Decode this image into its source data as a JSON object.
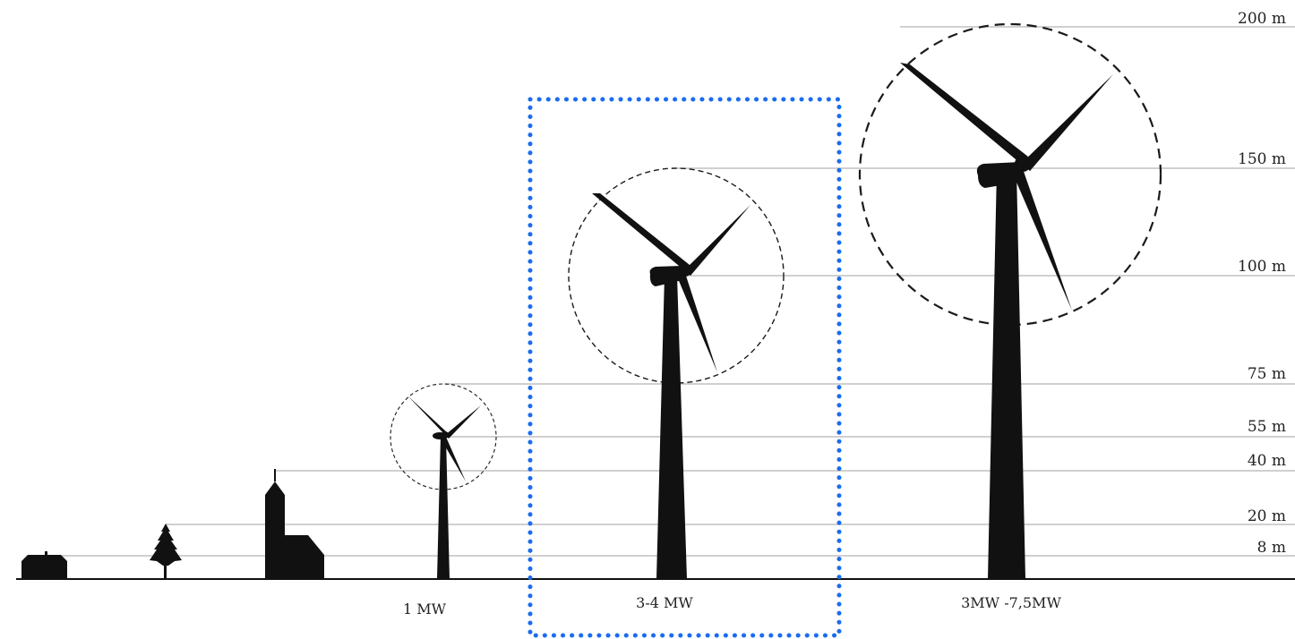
{
  "height_levels": [
    {
      "label": "200 m",
      "value_m": 200
    },
    {
      "label": "150 m",
      "value_m": 150
    },
    {
      "label": "100 m",
      "value_m": 100
    },
    {
      "label": "75 m",
      "value_m": 75
    },
    {
      "label": "55 m",
      "value_m": 55
    },
    {
      "label": "40 m",
      "value_m": 40
    },
    {
      "label": "20 m",
      "value_m": 20
    },
    {
      "label": "8 m",
      "value_m": 8
    }
  ],
  "turbines": [
    {
      "label": "1 MW",
      "hub_height_m": 55
    },
    {
      "label": "3-4 MW",
      "hub_height_m": 100
    },
    {
      "label": "3MW -7,5MW",
      "hub_height_m": 150
    }
  ],
  "reference_objects": [
    {
      "name": "house",
      "height_m": 8
    },
    {
      "name": "tree",
      "height_m": 20
    },
    {
      "name": "church",
      "height_m": 40
    }
  ],
  "colors": {
    "silhouette": "#111111",
    "grid_line": "#b3b3b3",
    "highlight_box": "#1a6cf0"
  },
  "highlight": {
    "target": "3-4 MW",
    "style": "dotted"
  }
}
